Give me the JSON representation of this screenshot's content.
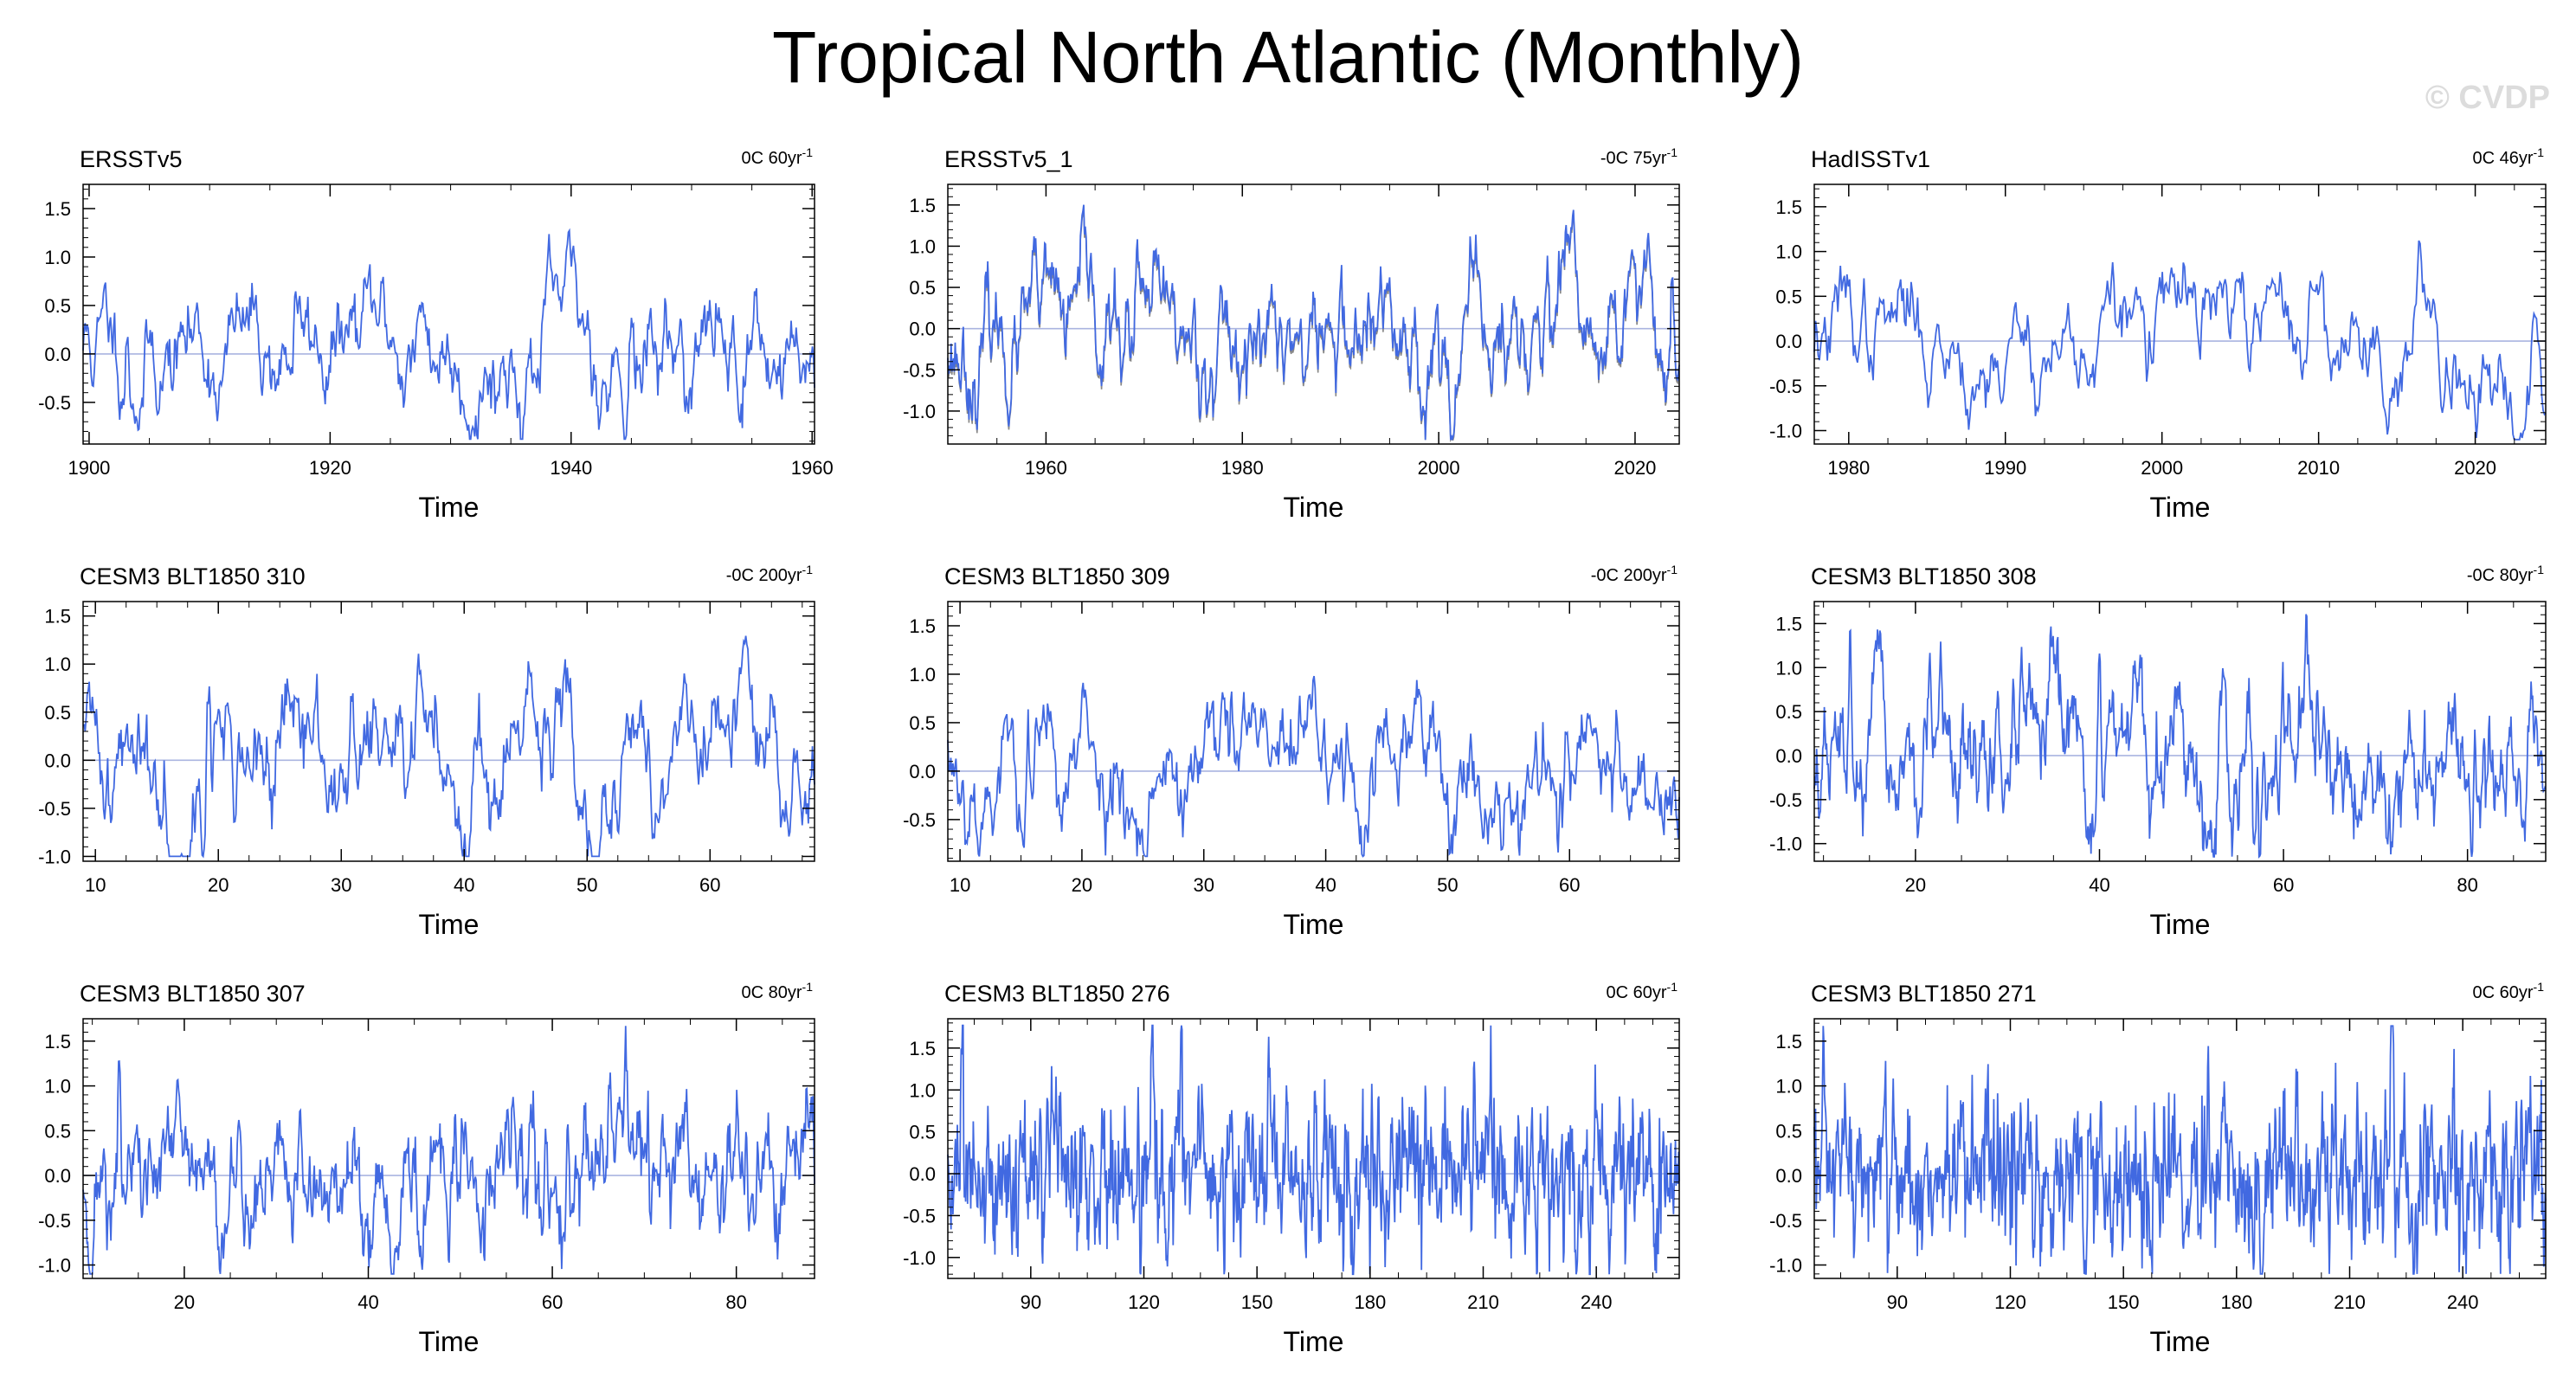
{
  "title": "Tropical North Atlantic (Monthly)",
  "watermark": "© CVDP",
  "colors": {
    "line": "#4169e1",
    "zero": "#aab4e0",
    "obs_shadow": "#888888"
  },
  "chart_data": [
    {
      "type": "line",
      "title": "ERSSTv5",
      "trend": "0C 60yr",
      "xlabel": "Time",
      "xlim": [
        1899.5,
        1960.2
      ],
      "ylim": [
        -0.93,
        1.75
      ],
      "xticks": [
        1900,
        1920,
        1940,
        1960
      ],
      "yticks": [
        -0.5,
        0.0,
        0.5,
        1.0,
        1.5
      ],
      "ytick_labels": [
        "-0.5",
        "0.0",
        "0.5",
        "1.0",
        "1.5"
      ],
      "n": 720,
      "seed": 11,
      "ar": 0.93,
      "amp": 0.28,
      "spikes": [
        [
          0.06,
          0.5
        ],
        [
          0.29,
          0.5
        ],
        [
          0.75,
          0.9
        ],
        [
          0.92,
          0.6
        ]
      ]
    },
    {
      "type": "line",
      "title": "ERSSTv5_1",
      "trend": "-0C 75yr",
      "xlabel": "Time",
      "xlim": [
        1950.0,
        2024.5
      ],
      "ylim": [
        -1.4,
        1.75
      ],
      "xticks": [
        1960,
        1980,
        2000,
        2020
      ],
      "yticks": [
        -1.0,
        -0.5,
        0.0,
        0.5,
        1.0,
        1.5
      ],
      "ytick_labels": [
        "-1.0",
        "-0.5",
        "0.0",
        "0.5",
        "1.0",
        "1.5"
      ],
      "n": 900,
      "seed": 23,
      "ar": 0.92,
      "amp": 0.32,
      "shadow": true,
      "spikes": [
        [
          0.26,
          0.7
        ],
        [
          0.36,
          0.7
        ],
        [
          0.82,
          0.8
        ],
        [
          0.46,
          -0.9
        ],
        [
          0.92,
          -0.9
        ],
        [
          0.99,
          0.8
        ]
      ]
    },
    {
      "type": "line",
      "title": "HadISSTv1",
      "trend": "0C 46yr",
      "xlabel": "Time",
      "xlim": [
        1977.8,
        2024.5
      ],
      "ylim": [
        -1.15,
        1.75
      ],
      "xticks": [
        1980,
        1990,
        2000,
        2010,
        2020
      ],
      "yticks": [
        -1.0,
        -0.5,
        0.0,
        0.5,
        1.0,
        1.5
      ],
      "ytick_labels": [
        "-1.0",
        "-0.5",
        "0.0",
        "0.5",
        "1.0",
        "1.5"
      ],
      "n": 560,
      "seed": 37,
      "ar": 0.93,
      "amp": 0.3,
      "spikes": [
        [
          0.68,
          0.85
        ],
        [
          0.86,
          -0.8
        ],
        [
          0.985,
          0.7
        ]
      ]
    },
    {
      "type": "line",
      "title": "CESM3 BLT1850 310",
      "trend": "-0C 200yr",
      "xlabel": "Time",
      "xlim": [
        9.0,
        68.5
      ],
      "ylim": [
        -1.05,
        1.65
      ],
      "xticks": [
        10,
        20,
        30,
        40,
        50,
        60
      ],
      "yticks": [
        -1.0,
        -0.5,
        0.0,
        0.5,
        1.0,
        1.5
      ],
      "ytick_labels": [
        "-1.0",
        "-0.5",
        "0.0",
        "0.5",
        "1.0",
        "1.5"
      ],
      "n": 714,
      "seed": 41,
      "ar": 0.9,
      "amp": 0.3,
      "spikes": [
        [
          0.172,
          1.2
        ],
        [
          0.91,
          0.7
        ],
        [
          0.12,
          -0.6
        ]
      ]
    },
    {
      "type": "line",
      "title": "CESM3 BLT1850 309",
      "trend": "-0C 200yr",
      "xlabel": "Time",
      "xlim": [
        9.0,
        69.0
      ],
      "ylim": [
        -0.93,
        1.75
      ],
      "xticks": [
        10,
        20,
        30,
        40,
        50,
        60
      ],
      "yticks": [
        -0.5,
        0.0,
        0.5,
        1.0,
        1.5
      ],
      "ytick_labels": [
        "-0.5",
        "0.0",
        "0.5",
        "1.0",
        "1.5"
      ],
      "n": 720,
      "seed": 53,
      "ar": 0.9,
      "amp": 0.28,
      "spikes": [
        [
          0.11,
          0.7
        ],
        [
          0.27,
          -0.6
        ]
      ]
    },
    {
      "type": "line",
      "title": "CESM3 BLT1850 308",
      "trend": "-0C 80yr",
      "xlabel": "Time",
      "xlim": [
        9.0,
        88.5
      ],
      "ylim": [
        -1.2,
        1.75
      ],
      "xticks": [
        20,
        40,
        60,
        80
      ],
      "yticks": [
        -1.0,
        -0.5,
        0.0,
        0.5,
        1.0,
        1.5
      ],
      "ytick_labels": [
        "-1.0",
        "-0.5",
        "0.0",
        "0.5",
        "1.0",
        "1.5"
      ],
      "n": 950,
      "seed": 67,
      "ar": 0.88,
      "amp": 0.3,
      "spikes": [
        [
          0.05,
          1.1
        ],
        [
          0.39,
          1.3
        ],
        [
          0.58,
          -0.9
        ],
        [
          0.9,
          -0.7
        ]
      ]
    },
    {
      "type": "line",
      "title": "CESM3 BLT1850 307",
      "trend": "0C 80yr",
      "xlabel": "Time",
      "xlim": [
        9.0,
        88.5
      ],
      "ylim": [
        -1.15,
        1.75
      ],
      "xticks": [
        20,
        40,
        60,
        80
      ],
      "yticks": [
        -1.0,
        -0.5,
        0.0,
        0.5,
        1.0,
        1.5
      ],
      "ytick_labels": [
        "-1.0",
        "-0.5",
        "0.0",
        "0.5",
        "1.0",
        "1.5"
      ],
      "n": 950,
      "seed": 71,
      "ar": 0.88,
      "amp": 0.3,
      "spikes": [
        [
          0.05,
          0.9
        ],
        [
          0.51,
          0.95
        ],
        [
          0.5,
          -0.8
        ],
        [
          0.72,
          0.9
        ]
      ]
    },
    {
      "type": "line",
      "title": "CESM3 BLT1850 276",
      "trend": "0C 60yr",
      "xlabel": "Time",
      "xlim": [
        68.0,
        262.0
      ],
      "ylim": [
        -1.25,
        1.85
      ],
      "xticks": [
        90,
        120,
        150,
        180,
        210,
        240
      ],
      "yticks": [
        -1.0,
        -0.5,
        0.0,
        0.5,
        1.0,
        1.5
      ],
      "ytick_labels": [
        "-1.0",
        "-0.5",
        "0.0",
        "0.5",
        "1.0",
        "1.5"
      ],
      "n": 1150,
      "seed": 83,
      "ar": 0.55,
      "amp": 0.3,
      "spikes": [
        [
          0.28,
          1.3
        ],
        [
          0.3,
          -1.0
        ],
        [
          0.32,
          1.4
        ],
        [
          0.44,
          1.2
        ],
        [
          0.53,
          1.2
        ],
        [
          0.72,
          1.2
        ],
        [
          0.86,
          -0.9
        ],
        [
          0.96,
          1.0
        ]
      ]
    },
    {
      "type": "line",
      "title": "CESM3 BLT1850 271",
      "trend": "0C 60yr",
      "xlabel": "Time",
      "xlim": [
        68.0,
        262.0
      ],
      "ylim": [
        -1.15,
        1.75
      ],
      "xticks": [
        90,
        120,
        150,
        180,
        210,
        240
      ],
      "yticks": [
        -1.0,
        -0.5,
        0.0,
        0.5,
        1.0,
        1.5
      ],
      "ytick_labels": [
        "-1.0",
        "-0.5",
        "0.0",
        "0.5",
        "1.0",
        "1.5"
      ],
      "n": 1150,
      "seed": 97,
      "ar": 0.55,
      "amp": 0.3,
      "spikes": [
        [
          0.37,
          -1.0
        ],
        [
          0.48,
          1.1
        ],
        [
          0.66,
          1.0
        ],
        [
          0.79,
          1.5
        ],
        [
          0.82,
          -0.9
        ]
      ]
    }
  ]
}
